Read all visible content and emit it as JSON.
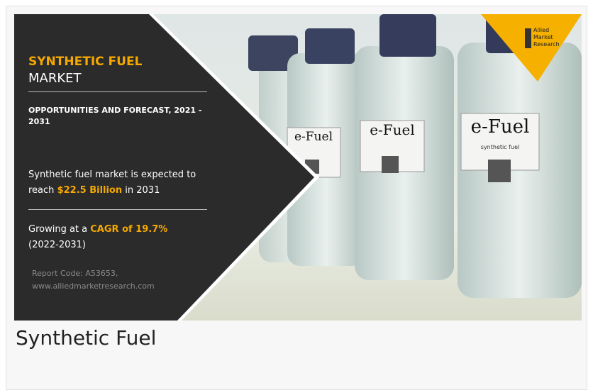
{
  "banner": {
    "title_highlight": "SYNTHETIC FUEL",
    "title_rest": "MARKET",
    "subtitle": "OPPORTUNITIES AND FORECAST, 2021 - 2031",
    "market_before": "Synthetic fuel market is expected to reach",
    "market_value": "$22.5 Billion",
    "market_after": "in 2031",
    "growth_before": "Growing at a",
    "growth_value": "CAGR of 19.7%",
    "growth_after": "(2022-2031)",
    "report_code": "Report Code: A53653,",
    "website": "www.alliedmarketresearch.com"
  },
  "photo": {
    "bottle_labels": [
      "e-Fuel",
      "e-Fuel",
      "e-Fuel"
    ],
    "bottle_sublabel": "synthetic fuel"
  },
  "logo": [
    "Allied",
    "Market",
    "Research"
  ],
  "caption": "Synthetic Fuel"
}
